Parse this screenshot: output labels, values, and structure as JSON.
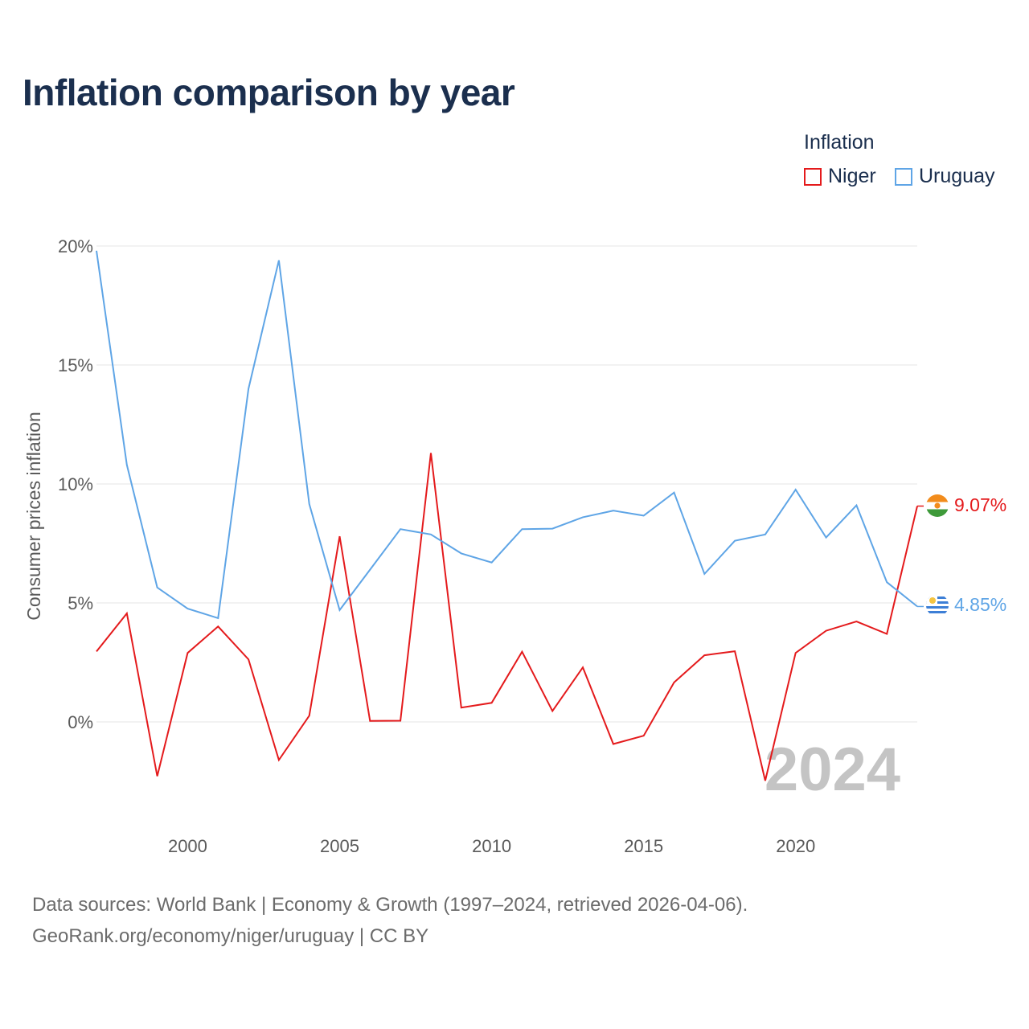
{
  "title": "Inflation comparison by year",
  "legend": {
    "title": "Inflation",
    "items": [
      {
        "label": "Niger",
        "color": "#e41a1c"
      },
      {
        "label": "Uruguay",
        "color": "#5fa5e6"
      }
    ]
  },
  "source": {
    "line1": "Data sources: World Bank | Economy & Growth (1997–2024, retrieved 2026-04-06).",
    "line2": "GeoRank.org/economy/niger/uruguay | CC BY"
  },
  "chart_data": {
    "type": "line",
    "title": "Inflation comparison by year",
    "xlabel": "",
    "ylabel": "Consumer prices inflation",
    "xlim": [
      1997,
      2024
    ],
    "ylim": [
      -4,
      20
    ],
    "x_ticks": [
      2000,
      2005,
      2010,
      2015,
      2020
    ],
    "y_ticks": [
      0,
      5,
      10,
      15,
      20
    ],
    "y_tick_labels": [
      "0%",
      "5%",
      "10%",
      "15%",
      "20%"
    ],
    "grid": true,
    "legend_position": "top-right",
    "annotation": "2024",
    "x": [
      1997,
      1998,
      1999,
      2000,
      2001,
      2002,
      2003,
      2004,
      2005,
      2006,
      2007,
      2008,
      2009,
      2010,
      2011,
      2012,
      2013,
      2014,
      2015,
      2016,
      2017,
      2018,
      2019,
      2020,
      2021,
      2022,
      2023,
      2024
    ],
    "series": [
      {
        "name": "Niger",
        "color": "#e41a1c",
        "end_label": "9.07%",
        "values": [
          2.96,
          4.56,
          -2.28,
          2.9,
          4.01,
          2.63,
          -1.6,
          0.26,
          7.8,
          0.04,
          0.05,
          11.3,
          0.6,
          0.8,
          2.95,
          0.46,
          2.29,
          -0.93,
          -0.58,
          1.66,
          2.8,
          2.97,
          -2.47,
          2.9,
          3.83,
          4.22,
          3.7,
          9.07
        ]
      },
      {
        "name": "Uruguay",
        "color": "#5fa5e6",
        "end_label": "4.85%",
        "values": [
          19.8,
          10.8,
          5.65,
          4.76,
          4.36,
          14.0,
          19.4,
          9.16,
          4.7,
          6.4,
          8.1,
          7.88,
          7.08,
          6.7,
          8.1,
          8.12,
          8.6,
          8.88,
          8.67,
          9.64,
          6.22,
          7.61,
          7.88,
          9.76,
          7.75,
          9.1,
          5.87,
          4.85
        ]
      }
    ]
  }
}
